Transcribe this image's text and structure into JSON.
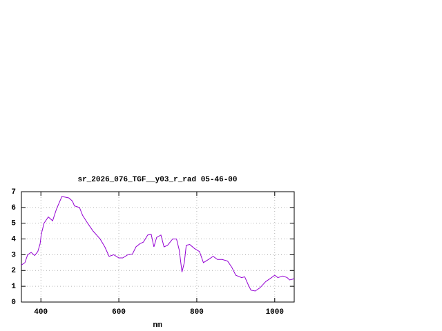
{
  "chart_data": {
    "type": "line",
    "title": "sr_2026_076_TGF__y03_r_rad 05-46-00",
    "x_label": "nm",
    "x": [
      350,
      359,
      366,
      375,
      384,
      392,
      398,
      401,
      408,
      419,
      428,
      430,
      440,
      454,
      472,
      481,
      486,
      499,
      507,
      520,
      534,
      552,
      564,
      575,
      587,
      600,
      610,
      623,
      635,
      644,
      654,
      663,
      674,
      683,
      690,
      697,
      708,
      716,
      725,
      738,
      748,
      755,
      762,
      768,
      773,
      782,
      794,
      807,
      817,
      830,
      842,
      853,
      865,
      879,
      890,
      900,
      915,
      923,
      932,
      939,
      950,
      962,
      977,
      989,
      1000,
      1008,
      1021,
      1032,
      1038,
      1046,
      1050
    ],
    "values": [
      2.35,
      2.5,
      3.0,
      3.15,
      2.95,
      3.2,
      3.7,
      4.3,
      5.0,
      5.4,
      5.2,
      5.15,
      5.9,
      6.7,
      6.6,
      6.4,
      6.1,
      6.0,
      5.5,
      5.0,
      4.5,
      4.0,
      3.5,
      2.9,
      3.0,
      2.8,
      2.8,
      3.0,
      3.05,
      3.5,
      3.7,
      3.8,
      4.25,
      4.3,
      3.5,
      4.1,
      4.25,
      3.5,
      3.6,
      4.0,
      4.0,
      3.3,
      1.9,
      2.5,
      3.6,
      3.65,
      3.4,
      3.2,
      2.5,
      2.7,
      2.9,
      2.7,
      2.7,
      2.6,
      2.2,
      1.7,
      1.55,
      1.6,
      1.1,
      0.75,
      0.7,
      0.9,
      1.3,
      1.5,
      1.7,
      1.55,
      1.65,
      1.55,
      1.4,
      1.45,
      1.5
    ],
    "color": "#9400d3",
    "xlim": [
      350,
      1050
    ],
    "ylim": [
      0,
      7
    ],
    "xticks": [
      400,
      600,
      800,
      1000
    ],
    "yticks": [
      0,
      1,
      2,
      3,
      4,
      5,
      6,
      7
    ],
    "grid": true
  }
}
